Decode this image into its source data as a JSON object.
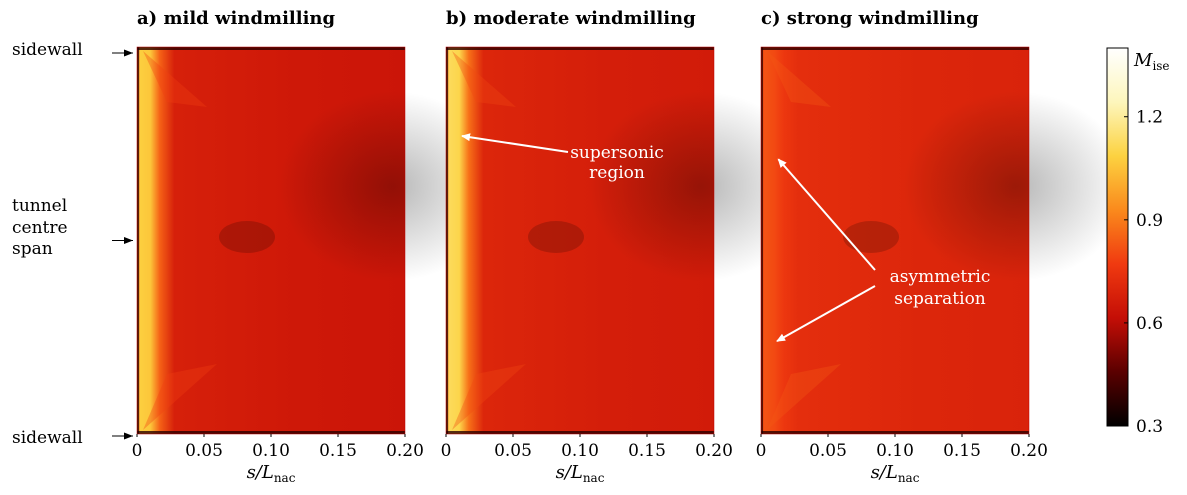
{
  "chart_data": {
    "type": "heatmap",
    "colorbar": {
      "label": "M",
      "label_sub": "ise",
      "range": [
        0.3,
        1.4
      ],
      "ticks": [
        0.3,
        0.6,
        0.9,
        1.2
      ],
      "tick_labels": [
        "0.3",
        "0.6",
        "0.9",
        "1.2"
      ],
      "colormap": [
        "#000000",
        "#5a0000",
        "#c40e06",
        "#f03a10",
        "#fa8a1c",
        "#fcd240",
        "#fdf6bc",
        "#ffffff"
      ]
    },
    "y_labels": [
      {
        "value": 1.0,
        "lines": [
          "sidewall"
        ]
      },
      {
        "value": 0.5,
        "lines": [
          "tunnel",
          "centre",
          "span"
        ]
      },
      {
        "value": 0.0,
        "lines": [
          "sidewall"
        ]
      }
    ],
    "xaxis": {
      "label": "s/L",
      "label_sub": "nac",
      "ticks": [
        0,
        0.05,
        0.1,
        0.15,
        0.2
      ],
      "tick_labels": [
        "0",
        "0.05",
        "0.10",
        "0.15",
        "0.20"
      ],
      "range": [
        0,
        0.2
      ]
    },
    "panels": [
      {
        "title": "a) mild windmilling",
        "baseline_mach": 0.66,
        "leading_edge_mach": 1.08
      },
      {
        "title": "b) moderate windmilling",
        "baseline_mach": 0.68,
        "leading_edge_mach": 1.12
      },
      {
        "title": "c) strong windmilling",
        "baseline_mach": 0.71,
        "leading_edge_mach": 0.82
      }
    ],
    "annotations": [
      {
        "panel": 1,
        "lines": [
          "supersonic",
          "region"
        ],
        "arrows_to": [
          [
            0.003,
            0.77
          ]
        ]
      },
      {
        "panel": 2,
        "lines": [
          "asymmetric",
          "separation"
        ],
        "arrows_to": [
          [
            0.004,
            0.71
          ],
          [
            0.003,
            0.24
          ]
        ]
      }
    ]
  }
}
